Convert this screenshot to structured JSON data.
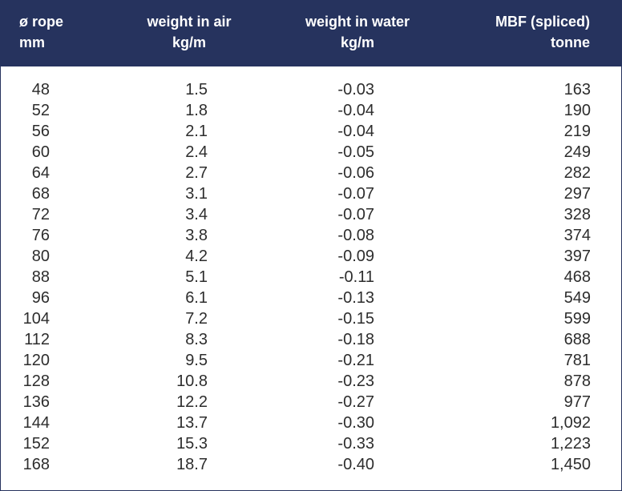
{
  "header": {
    "rope": [
      "ø rope",
      "mm"
    ],
    "air": [
      "weight in air",
      "kg/m"
    ],
    "water": [
      "weight in water",
      "kg/m"
    ],
    "mbf": [
      "MBF (spliced)",
      "tonne"
    ]
  },
  "rows": [
    [
      "48",
      "1.5",
      "-0.03",
      "163"
    ],
    [
      "52",
      "1.8",
      "-0.04",
      "190"
    ],
    [
      "56",
      "2.1",
      "-0.04",
      "219"
    ],
    [
      "60",
      "2.4",
      "-0.05",
      "249"
    ],
    [
      "64",
      "2.7",
      "-0.06",
      "282"
    ],
    [
      "68",
      "3.1",
      "-0.07",
      "297"
    ],
    [
      "72",
      "3.4",
      "-0.07",
      "328"
    ],
    [
      "76",
      "3.8",
      "-0.08",
      "374"
    ],
    [
      "80",
      "4.2",
      "-0.09",
      "397"
    ],
    [
      "88",
      "5.1",
      "-0.11",
      "468"
    ],
    [
      "96",
      "6.1",
      "-0.13",
      "549"
    ],
    [
      "104",
      "7.2",
      "-0.15",
      "599"
    ],
    [
      "112",
      "8.3",
      "-0.18",
      "688"
    ],
    [
      "120",
      "9.5",
      "-0.21",
      "781"
    ],
    [
      "128",
      "10.8",
      "-0.23",
      "878"
    ],
    [
      "136",
      "12.2",
      "-0.27",
      "977"
    ],
    [
      "144",
      "13.7",
      "-0.30",
      "1,092"
    ],
    [
      "152",
      "15.3",
      "-0.33",
      "1,223"
    ],
    [
      "168",
      "18.7",
      "-0.40",
      "1,450"
    ]
  ],
  "colors": {
    "header_bg": "#26335e",
    "header_text": "#ffffff",
    "body_text": "#2d2d2d",
    "border": "#26335e"
  }
}
